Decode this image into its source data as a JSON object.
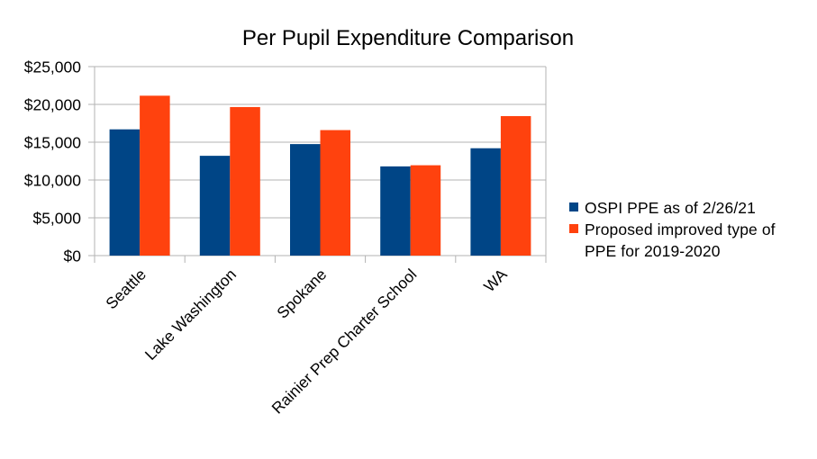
{
  "chart_data": {
    "type": "bar",
    "title": "Per Pupil Expenditure Comparison",
    "categories": [
      "Seattle",
      "Lake Washington",
      "Spokane",
      "Rainier Prep Charter School",
      "WA"
    ],
    "series": [
      {
        "name": "OSPI PPE as of 2/26/21",
        "color": "#004586",
        "values": [
          16700,
          13200,
          14750,
          11800,
          14200
        ]
      },
      {
        "name": "Proposed improved type of PPE for 2019-2020",
        "color": "#ff420e",
        "values": [
          21150,
          19650,
          16600,
          11950,
          18450
        ]
      }
    ],
    "y_ticks": [
      "$0",
      "$5,000",
      "$10,000",
      "$15,000",
      "$20,000",
      "$25,000"
    ],
    "ylim": [
      0,
      25000
    ],
    "grid": true,
    "legend_position": "right"
  }
}
